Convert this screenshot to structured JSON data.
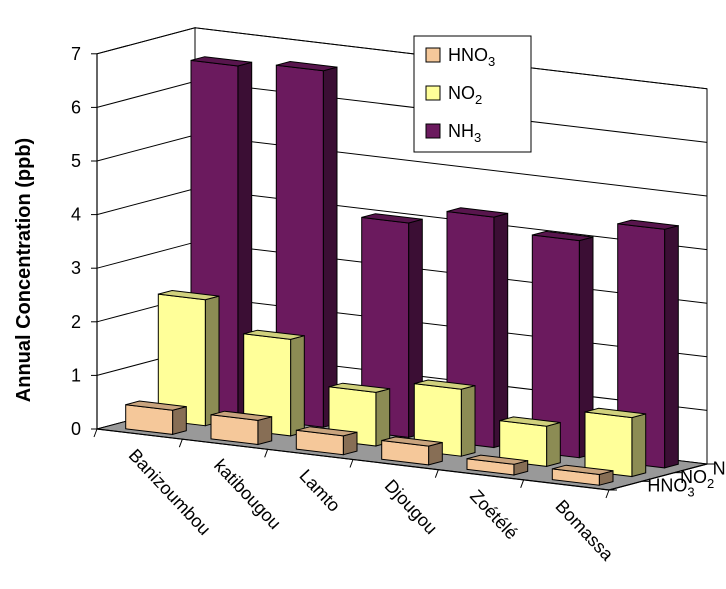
{
  "chart_data": {
    "type": "bar",
    "ylabel": "Annual Concentration (ppb)",
    "ylim": [
      0,
      7
    ],
    "y_ticks": [
      "0",
      "1",
      "2",
      "3",
      "4",
      "5",
      "6",
      "7"
    ],
    "categories": [
      "Banizoumbou",
      "katibougou",
      "Lamto",
      "Djougou",
      "Zoétélé",
      "Bomassa"
    ],
    "series": [
      {
        "name": "HNO3",
        "label_main": "HNO",
        "label_sub": "3",
        "color": "#f5c89a",
        "values": [
          0.45,
          0.45,
          0.35,
          0.35,
          0.2,
          0.2
        ]
      },
      {
        "name": "NO2",
        "label_main": "NO",
        "label_sub": "2",
        "color": "#ffff99",
        "values": [
          2.35,
          1.8,
          1.0,
          1.25,
          0.75,
          1.1
        ]
      },
      {
        "name": "NH3",
        "label_main": "NH",
        "label_sub": "3",
        "color": "#6b1a5e",
        "values": [
          6.55,
          6.65,
          4.0,
          4.3,
          4.05,
          4.45
        ]
      }
    ],
    "legend": {
      "placement": "top-right"
    },
    "floor_color": "#999999"
  }
}
